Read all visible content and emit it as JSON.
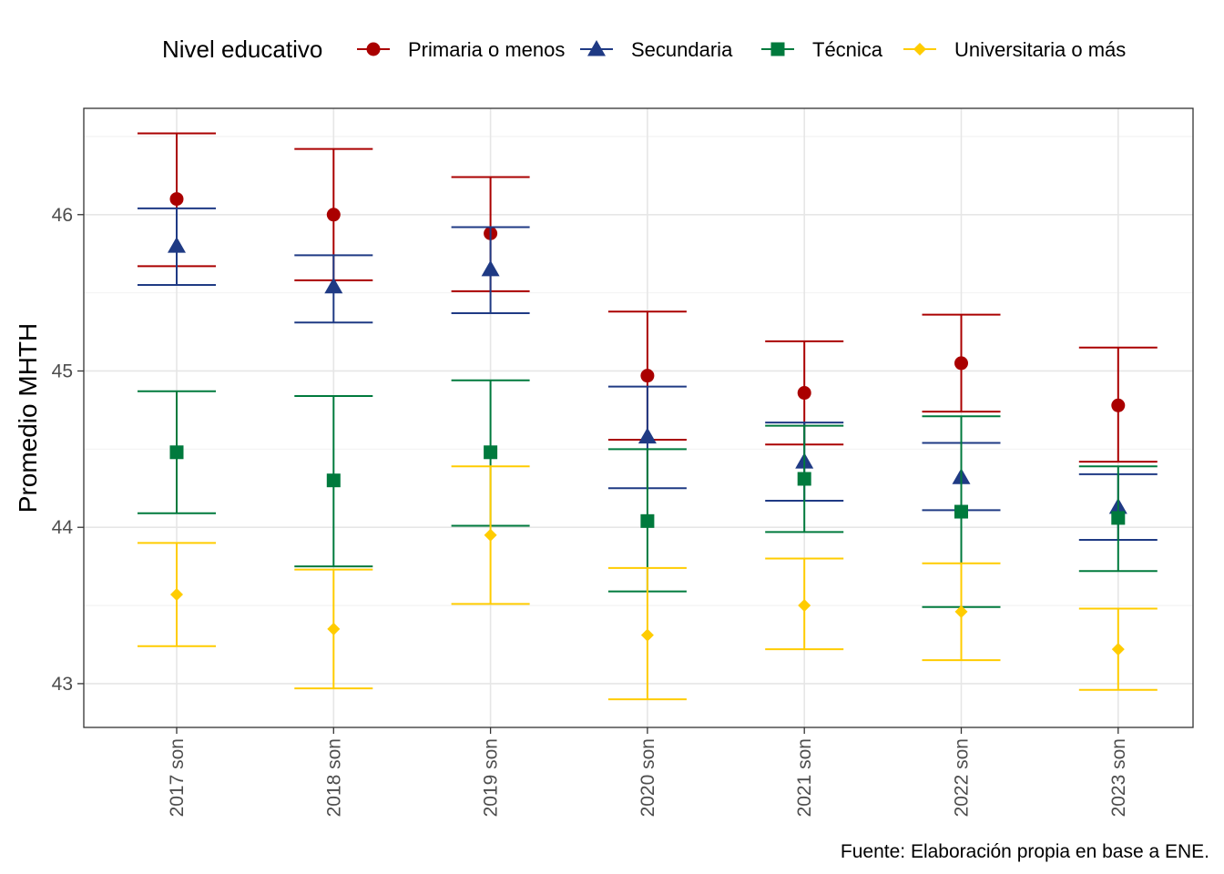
{
  "chart_data": {
    "type": "scatter",
    "subtype": "point-with-errorbars",
    "title": "",
    "xlabel": "",
    "ylabel": "Promedio MHTH",
    "caption": "Fuente: Elaboración propia en base a ENE.",
    "legend": {
      "title": "Nivel educativo",
      "position": "top"
    },
    "grid": true,
    "ylim": [
      42.72,
      46.68
    ],
    "y_ticks": [
      43,
      44,
      45,
      46
    ],
    "categories": [
      "2017 son",
      "2018 son",
      "2019 son",
      "2020 son",
      "2021 son",
      "2022 son",
      "2023 son"
    ],
    "series": [
      {
        "name": "Primaria o menos",
        "color": "#AA0000",
        "marker": "circle",
        "values": [
          46.1,
          46.0,
          45.88,
          44.97,
          44.86,
          45.05,
          44.78
        ],
        "lower": [
          45.67,
          45.58,
          45.51,
          44.56,
          44.53,
          44.74,
          44.42
        ],
        "upper": [
          46.52,
          46.42,
          46.24,
          45.38,
          45.19,
          45.36,
          45.15
        ]
      },
      {
        "name": "Secundaria",
        "color": "#1F3A84",
        "marker": "triangle",
        "values": [
          45.8,
          45.54,
          45.65,
          44.58,
          44.42,
          44.32,
          44.13
        ],
        "lower": [
          45.55,
          45.31,
          45.37,
          44.25,
          44.17,
          44.11,
          43.92
        ],
        "upper": [
          46.04,
          45.74,
          45.92,
          44.9,
          44.67,
          44.54,
          44.34
        ]
      },
      {
        "name": "Técnica",
        "color": "#007A3D",
        "marker": "square",
        "values": [
          44.48,
          44.3,
          44.48,
          44.04,
          44.31,
          44.1,
          44.06
        ],
        "lower": [
          44.09,
          43.75,
          44.01,
          43.59,
          43.97,
          43.49,
          43.72
        ],
        "upper": [
          44.87,
          44.84,
          44.94,
          44.5,
          44.65,
          44.71,
          44.39
        ]
      },
      {
        "name": "Universitaria o más",
        "color": "#FFCC00",
        "marker": "diamond",
        "values": [
          43.57,
          43.35,
          43.95,
          43.31,
          43.5,
          43.46,
          43.22
        ],
        "lower": [
          43.24,
          42.97,
          43.51,
          42.9,
          43.22,
          43.15,
          42.96
        ],
        "upper": [
          43.9,
          43.73,
          44.39,
          43.74,
          43.8,
          43.77,
          43.48
        ]
      }
    ]
  }
}
